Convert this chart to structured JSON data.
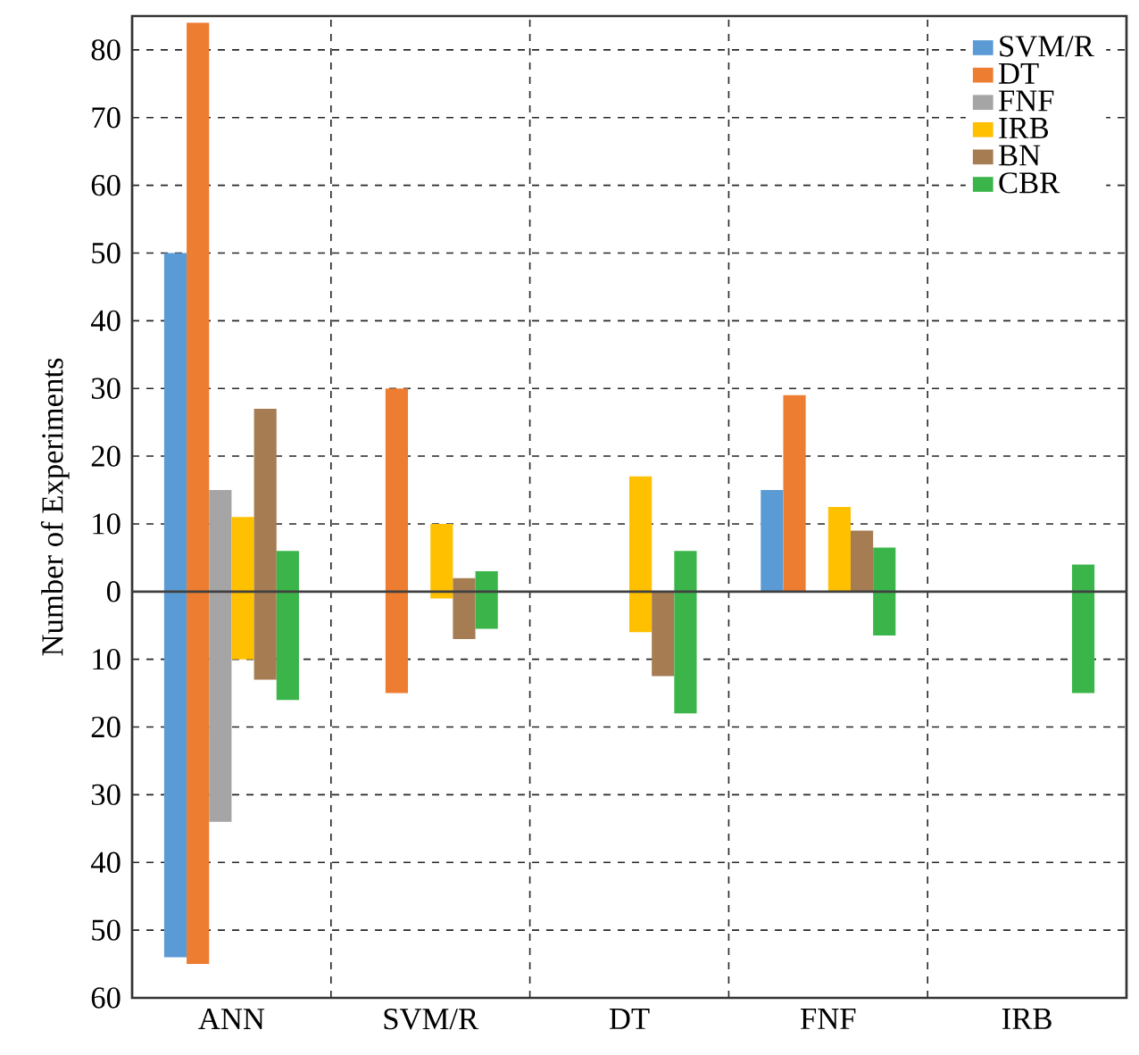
{
  "chart_data": {
    "type": "bar",
    "ylabel": "Number of Experiments",
    "categories": [
      "ANN",
      "SVM/R",
      "DT",
      "FNF",
      "IRB"
    ],
    "series": [
      {
        "name": "SVM/R",
        "color": "#5b9bd5",
        "base": [
          -54,
          null,
          null,
          0,
          null
        ],
        "values": [
          104,
          null,
          null,
          15,
          null
        ]
      },
      {
        "name": "DT",
        "color": "#ed7d31",
        "base": [
          -55,
          -15,
          null,
          0,
          null
        ],
        "values": [
          139,
          45,
          null,
          29,
          null
        ]
      },
      {
        "name": "FNF",
        "color": "#a5a5a5",
        "base": [
          -34,
          null,
          null,
          null,
          null
        ],
        "values": [
          49,
          null,
          null,
          null,
          null
        ]
      },
      {
        "name": "IRB",
        "color": "#ffc000",
        "base": [
          -10,
          -1,
          -6,
          0,
          null
        ],
        "values": [
          21,
          11,
          23,
          12.5,
          null
        ]
      },
      {
        "name": "BN",
        "color": "#a67c52",
        "base": [
          -13,
          -7,
          -12.5,
          0,
          null
        ],
        "values": [
          40,
          9,
          12.5,
          9,
          null
        ]
      },
      {
        "name": "CBR",
        "color": "#3bb54a",
        "base": [
          -16,
          -5.5,
          -18,
          -6.5,
          -15
        ],
        "values": [
          22,
          8.5,
          24,
          13,
          19
        ]
      }
    ],
    "ylim": [
      -60,
      85
    ],
    "yticks": [
      {
        "value": -60,
        "label": "60"
      },
      {
        "value": -50,
        "label": "50"
      },
      {
        "value": -40,
        "label": "40"
      },
      {
        "value": -30,
        "label": "30"
      },
      {
        "value": -20,
        "label": "20"
      },
      {
        "value": -10,
        "label": "10"
      },
      0,
      10,
      20,
      30,
      40,
      50,
      60,
      70,
      80
    ],
    "ref_lines": [
      {
        "axis": "y",
        "value": 0,
        "color": "#404040"
      }
    ],
    "grid": true,
    "legend": "top right"
  }
}
